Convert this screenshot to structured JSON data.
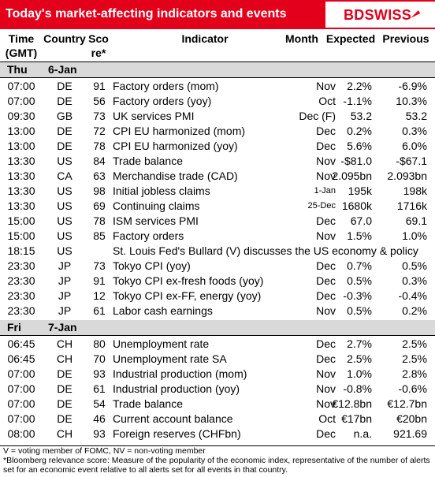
{
  "header": {
    "title": "Today's market-affecting indicators and events",
    "logo": "BDSWISS",
    "accent": "#e2001a"
  },
  "columns": {
    "time": [
      "Time",
      "(GMT)"
    ],
    "country": "Country",
    "score": [
      "Sco",
      "re*"
    ],
    "indicator": "Indicator",
    "month": "Month",
    "expected": "Expected",
    "previous": "Previous"
  },
  "days": [
    {
      "dow": "Thu",
      "date": "6-Jan",
      "rows": [
        {
          "time": "07:00",
          "country": "DE",
          "score": "91",
          "indicator": "Factory orders (mom)",
          "month": "Nov",
          "expected": "2.2%",
          "previous": "-6.9%"
        },
        {
          "time": "07:00",
          "country": "DE",
          "score": "56",
          "indicator": "Factory orders (yoy)",
          "month": "Oct",
          "expected": "-1.1%",
          "previous": "10.3%"
        },
        {
          "time": "09:30",
          "country": "GB",
          "score": "73",
          "indicator": "UK services PMI",
          "month": "Dec (F)",
          "expected": "53.2",
          "previous": "53.2"
        },
        {
          "time": "13:00",
          "country": "DE",
          "score": "72",
          "indicator": "CPI EU harmonized (mom)",
          "month": "Dec",
          "expected": "0.2%",
          "previous": "0.3%"
        },
        {
          "time": "13:00",
          "country": "DE",
          "score": "78",
          "indicator": "CPI EU harmonized (yoy)",
          "month": "Dec",
          "expected": "5.6%",
          "previous": "6.0%"
        },
        {
          "time": "13:30",
          "country": "US",
          "score": "84",
          "indicator": "Trade balance",
          "month": "Nov",
          "expected": "-$81.0",
          "previous": "-$67.1"
        },
        {
          "time": "13:30",
          "country": "CA",
          "score": "63",
          "indicator": "Merchandise trade (CAD)",
          "month": "Nov",
          "expected": "2.095bn",
          "previous": "2.093bn"
        },
        {
          "time": "13:30",
          "country": "US",
          "score": "98",
          "indicator": "Initial jobless claims",
          "month": "1-Jan",
          "expected": "195k",
          "previous": "198k"
        },
        {
          "time": "13:30",
          "country": "US",
          "score": "69",
          "indicator": "Continuing claims",
          "month": "25-Dec",
          "expected": "1680k",
          "previous": "1716k"
        },
        {
          "time": "15:00",
          "country": "US",
          "score": "78",
          "indicator": "ISM services PMI",
          "month": "Dec",
          "expected": "67.0",
          "previous": "69.1"
        },
        {
          "time": "15:00",
          "country": "US",
          "score": "85",
          "indicator": "Factory orders",
          "month": "Nov",
          "expected": "1.5%",
          "previous": "1.0%"
        },
        {
          "time": "18:15",
          "country": "US",
          "score": "",
          "indicator": "St. Louis Fed's Bullard (V) discusses the US economy & policy",
          "month": "",
          "expected": "",
          "previous": ""
        },
        {
          "time": "23:30",
          "country": "JP",
          "score": "73",
          "indicator": "Tokyo CPI (yoy)",
          "month": "Dec",
          "expected": "0.7%",
          "previous": "0.5%"
        },
        {
          "time": "23:30",
          "country": "JP",
          "score": "91",
          "indicator": "Tokyo CPI ex-fresh foods (yoy)",
          "month": "Dec",
          "expected": "0.5%",
          "previous": "0.3%"
        },
        {
          "time": "23:30",
          "country": "JP",
          "score": "12",
          "indicator": "Tokyo CPI ex-FF, energy (yoy)",
          "month": "Dec",
          "expected": "-0.3%",
          "previous": "-0.4%"
        },
        {
          "time": "23:30",
          "country": "JP",
          "score": "61",
          "indicator": "Labor cash earnings",
          "month": "Nov",
          "expected": "0.5%",
          "previous": "0.2%"
        }
      ]
    },
    {
      "dow": "Fri",
      "date": "7-Jan",
      "rows": [
        {
          "time": "06:45",
          "country": "CH",
          "score": "80",
          "indicator": "Unemployment rate",
          "month": "Dec",
          "expected": "2.7%",
          "previous": "2.5%"
        },
        {
          "time": "06:45",
          "country": "CH",
          "score": "70",
          "indicator": "Unemployment rate SA",
          "month": "Dec",
          "expected": "2.5%",
          "previous": "2.5%"
        },
        {
          "time": "07:00",
          "country": "DE",
          "score": "93",
          "indicator": "Industrial production (mom)",
          "month": "Nov",
          "expected": "1.0%",
          "previous": "2.8%"
        },
        {
          "time": "07:00",
          "country": "DE",
          "score": "61",
          "indicator": "Industrial production (yoy)",
          "month": "Nov",
          "expected": "-0.8%",
          "previous": "-0.6%"
        },
        {
          "time": "07:00",
          "country": "DE",
          "score": "54",
          "indicator": "Trade balance",
          "month": "Nov",
          "expected": "€12.8bn",
          "previous": "€12.7bn"
        },
        {
          "time": "07:00",
          "country": "DE",
          "score": "46",
          "indicator": "Current account balance",
          "month": "Oct",
          "expected": "€17bn",
          "previous": "€20bn"
        },
        {
          "time": "08:00",
          "country": "CH",
          "score": "93",
          "indicator": "Foreign reserves (CHFbn)",
          "month": "Dec",
          "expected": "n.a.",
          "previous": "921.69"
        }
      ]
    }
  ],
  "footnotes": {
    "line1": "V = voting member of FOMC, NV = non-voting member",
    "line2": "*Bloomberg relevance score:  Measure of the popularity of the economic index, representative of the number of alerts set for an economic event relative to all alerts set for all events in that country."
  }
}
